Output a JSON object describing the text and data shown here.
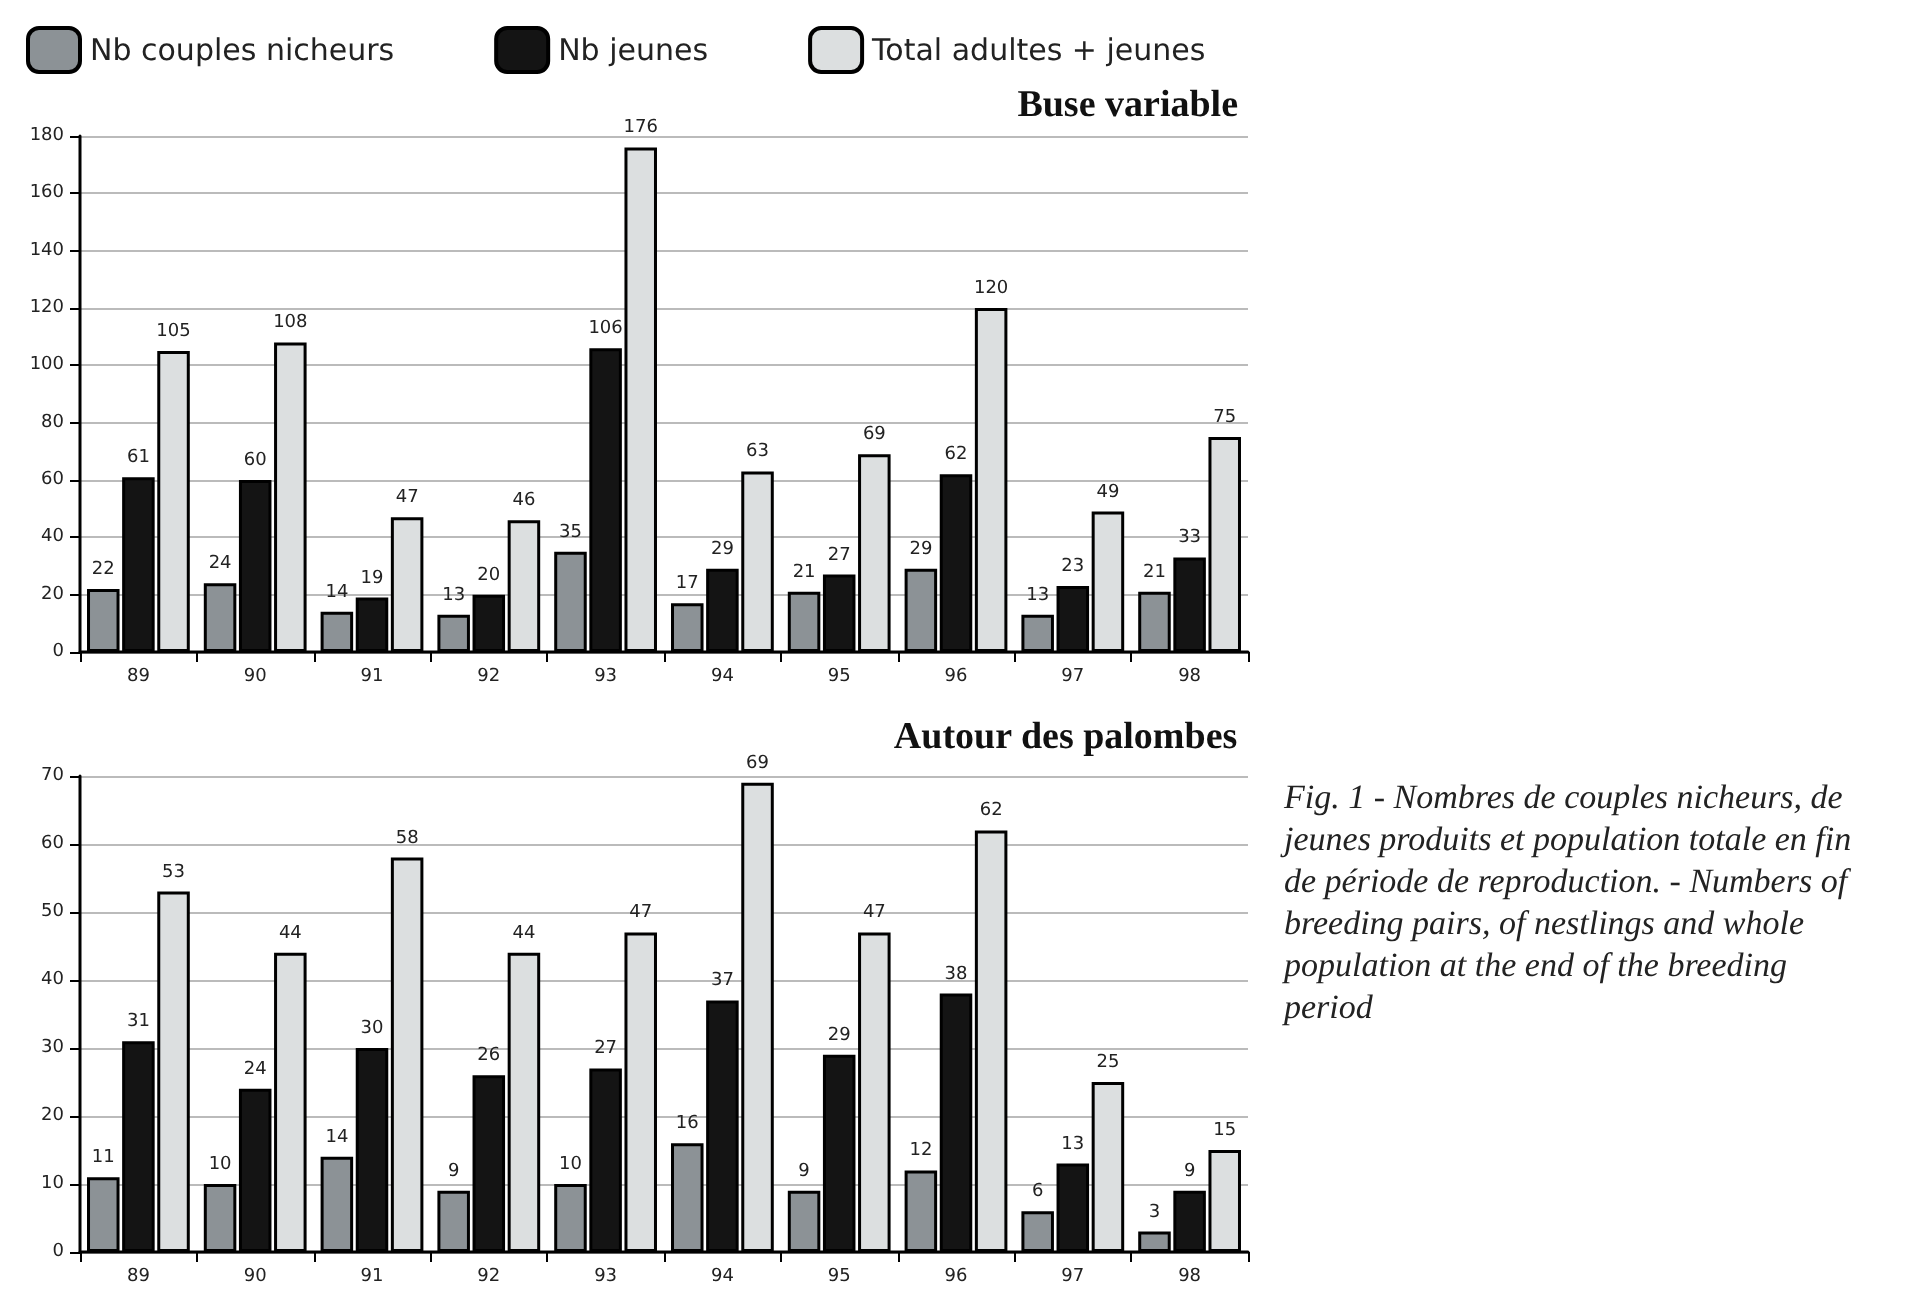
{
  "chart_data": [
    {
      "type": "bar",
      "title": "Buse variable",
      "categories": [
        "89",
        "90",
        "91",
        "92",
        "93",
        "94",
        "95",
        "96",
        "97",
        "98"
      ],
      "series": [
        {
          "name": "Nb couples nicheurs",
          "color": "#8c9296",
          "values": [
            22,
            24,
            14,
            13,
            35,
            17,
            21,
            29,
            13,
            21
          ]
        },
        {
          "name": "Nb jeunes",
          "color": "#141414",
          "values": [
            61,
            60,
            19,
            20,
            106,
            29,
            27,
            62,
            23,
            33
          ]
        },
        {
          "name": "Total adultes + jeunes",
          "color": "#dcdfe0",
          "values": [
            105,
            108,
            47,
            46,
            176,
            63,
            69,
            120,
            49,
            75
          ]
        }
      ],
      "ylim": [
        0,
        180
      ],
      "yticks": [
        0,
        20,
        40,
        60,
        80,
        100,
        120,
        140,
        160,
        180
      ],
      "grid": "y",
      "data_labels": true,
      "legend": "top left"
    },
    {
      "type": "bar",
      "title": "Autour des palombes",
      "categories": [
        "89",
        "90",
        "91",
        "92",
        "93",
        "94",
        "95",
        "96",
        "97",
        "98"
      ],
      "series": [
        {
          "color": "#8c9296",
          "values": [
            11,
            10,
            14,
            9,
            10,
            16,
            9,
            12,
            6,
            3
          ]
        },
        {
          "color": "#141414",
          "values": [
            31,
            24,
            30,
            26,
            27,
            37,
            29,
            38,
            13,
            9
          ]
        },
        {
          "color": "#dcdfe0",
          "values": [
            53,
            44,
            58,
            44,
            47,
            69,
            47,
            62,
            25,
            15
          ]
        }
      ],
      "ylim": [
        0,
        70
      ],
      "yticks": [
        0,
        10,
        20,
        30,
        40,
        50,
        60,
        70
      ],
      "grid": "y",
      "data_labels": true,
      "legend": false,
      "annotations": [
        "Fig. 1 - Nombres de couples nicheurs, de jeunes produits et population totale en fin de période de reproduction. - Numbers of breeding pairs, of nestlings and whole population at the end of the breeding period"
      ]
    }
  ]
}
